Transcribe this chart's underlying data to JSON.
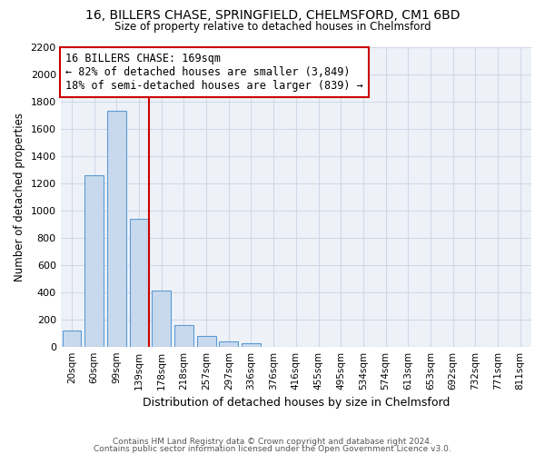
{
  "title_line1": "16, BILLERS CHASE, SPRINGFIELD, CHELMSFORD, CM1 6BD",
  "title_line2": "Size of property relative to detached houses in Chelmsford",
  "xlabel": "Distribution of detached houses by size in Chelmsford",
  "ylabel": "Number of detached properties",
  "bar_labels": [
    "20sqm",
    "60sqm",
    "99sqm",
    "139sqm",
    "178sqm",
    "218sqm",
    "257sqm",
    "297sqm",
    "336sqm",
    "376sqm",
    "416sqm",
    "455sqm",
    "495sqm",
    "534sqm",
    "574sqm",
    "613sqm",
    "653sqm",
    "692sqm",
    "732sqm",
    "771sqm",
    "811sqm"
  ],
  "bar_values": [
    120,
    1260,
    1730,
    940,
    410,
    155,
    80,
    40,
    25,
    0,
    0,
    0,
    0,
    0,
    0,
    0,
    0,
    0,
    0,
    0,
    0
  ],
  "bar_color": "#c9d9ed",
  "bar_edge_color": "#5b9bd5",
  "ylim": [
    0,
    2200
  ],
  "yticks": [
    0,
    200,
    400,
    600,
    800,
    1000,
    1200,
    1400,
    1600,
    1800,
    2000,
    2200
  ],
  "annotation_line1": "16 BILLERS CHASE: 169sqm",
  "annotation_line2": "← 82% of detached houses are smaller (3,849)",
  "annotation_line3": "18% of semi-detached houses are larger (839) →",
  "vline_color": "#cc0000",
  "grid_color": "#d0d8e8",
  "bg_color": "#eef2f8",
  "footer_line1": "Contains HM Land Registry data © Crown copyright and database right 2024.",
  "footer_line2": "Contains public sector information licensed under the Open Government Licence v3.0."
}
